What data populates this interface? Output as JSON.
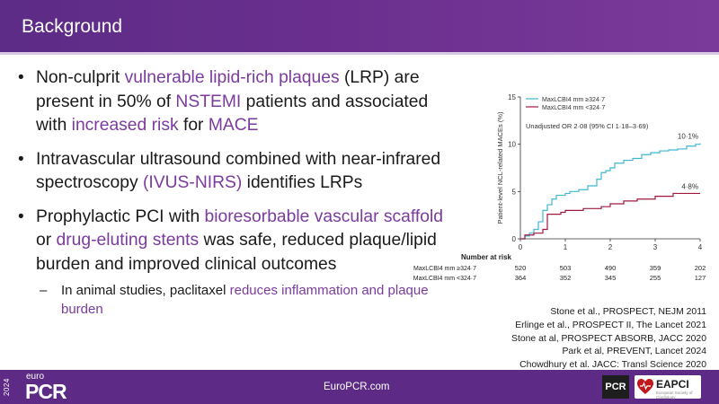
{
  "header": {
    "title": "Background"
  },
  "bullets": [
    {
      "parts": [
        {
          "text": "Non-culprit ",
          "hl": false
        },
        {
          "text": "vulnerable lipid-rich plaques",
          "hl": true
        },
        {
          "text": " (LRP) are present in 50% of ",
          "hl": false
        },
        {
          "text": "NSTEMI",
          "hl": true
        },
        {
          "text": " patients and associated with ",
          "hl": false
        },
        {
          "text": "increased risk",
          "hl": true
        },
        {
          "text": " for ",
          "hl": false
        },
        {
          "text": "MACE",
          "hl": true
        }
      ]
    },
    {
      "parts": [
        {
          "text": "Intravascular ultrasound combined with near-infrared spectroscopy ",
          "hl": false
        },
        {
          "text": "(IVUS-NIRS)",
          "hl": true
        },
        {
          "text": " identifies LRPs",
          "hl": false
        }
      ]
    },
    {
      "parts": [
        {
          "text": "Prophylactic PCI with ",
          "hl": false
        },
        {
          "text": "bioresorbable vascular scaffold",
          "hl": true
        },
        {
          "text": " or ",
          "hl": false
        },
        {
          "text": "drug-eluting stents",
          "hl": true
        },
        {
          "text": " was safe, reduced plaque/lipid burden and improved clinical outcomes",
          "hl": false
        }
      ]
    }
  ],
  "subbullet": {
    "parts": [
      {
        "text": "In animal studies, paclitaxel ",
        "hl": false
      },
      {
        "text": "reduces inflammation and plaque burden",
        "hl": true
      }
    ]
  },
  "references": [
    "Stone et al., PROSPECT, NEJM 2011",
    "Erlinge et al., PROSPECT II, The Lancet 2021",
    "Stone at al, PROSPECT ABSORB, JACC 2020",
    "Park et al, PREVENT, Lancet 2024",
    "Chowdhury et al. JACC: Transl Science 2020"
  ],
  "footer": {
    "year": "2024",
    "brand_small": "euro",
    "brand_large": "PCR",
    "website": "EuroPCR.com",
    "logo_pcr": "PCR",
    "logo_eapci": "EAPCI",
    "logo_eapci_sub": "European Society of Cardiology"
  },
  "colors": {
    "header": "#5c2c86",
    "footer": "#5d2b85",
    "highlight": "#7b3b9e",
    "series_high": "#3fb8d0",
    "series_low": "#a0193c"
  },
  "chart_data": {
    "type": "line",
    "ylabel": "Patient-level NCL-related MACEs (%)",
    "xlabel": "",
    "xlim": [
      0,
      4
    ],
    "ylim": [
      0,
      15
    ],
    "xticks": [
      0,
      1,
      2,
      3,
      4
    ],
    "yticks": [
      0,
      5,
      10,
      15
    ],
    "annotation": "Unadjusted OR 2·08 (95% CI 1·18–3·69)",
    "legend_position": "top-left",
    "series": [
      {
        "name": "MaxLCBI4 mm ≥324·7",
        "color": "#3fb8d0",
        "end_label": "10·1%",
        "x": [
          0,
          0.1,
          0.2,
          0.3,
          0.4,
          0.5,
          0.6,
          0.7,
          0.8,
          1.0,
          1.1,
          1.3,
          1.5,
          1.7,
          1.8,
          1.9,
          2.0,
          2.1,
          2.3,
          2.5,
          2.7,
          2.9,
          3.1,
          3.3,
          3.5,
          3.7,
          3.9,
          4.0
        ],
        "y": [
          0,
          0.3,
          0.6,
          1.0,
          1.8,
          3.0,
          3.6,
          4.2,
          4.6,
          4.8,
          5.0,
          5.2,
          5.6,
          6.3,
          7.0,
          7.2,
          7.5,
          8.0,
          8.3,
          8.5,
          8.9,
          9.1,
          9.3,
          9.4,
          9.5,
          9.8,
          10.0,
          10.1
        ]
      },
      {
        "name": "MaxLCBI4 mm <324·7",
        "color": "#a0193c",
        "end_label": "4·8%",
        "x": [
          0,
          0.1,
          0.3,
          0.5,
          0.6,
          0.9,
          1.0,
          1.4,
          1.8,
          2.0,
          2.3,
          2.6,
          3.0,
          3.4,
          4.0
        ],
        "y": [
          0,
          0.4,
          0.6,
          1.0,
          2.6,
          2.8,
          3.0,
          3.2,
          3.4,
          3.7,
          4.0,
          4.2,
          4.5,
          4.8,
          4.8
        ]
      }
    ],
    "risk_table": {
      "title": "Number at risk",
      "rows": [
        {
          "label": "MaxLCBI4 mm ≥324·7",
          "values": [
            "520",
            "503",
            "490",
            "359",
            "202"
          ]
        },
        {
          "label": "MaxLCBI4 mm <324·7",
          "values": [
            "364",
            "352",
            "345",
            "255",
            "127"
          ]
        }
      ]
    }
  }
}
